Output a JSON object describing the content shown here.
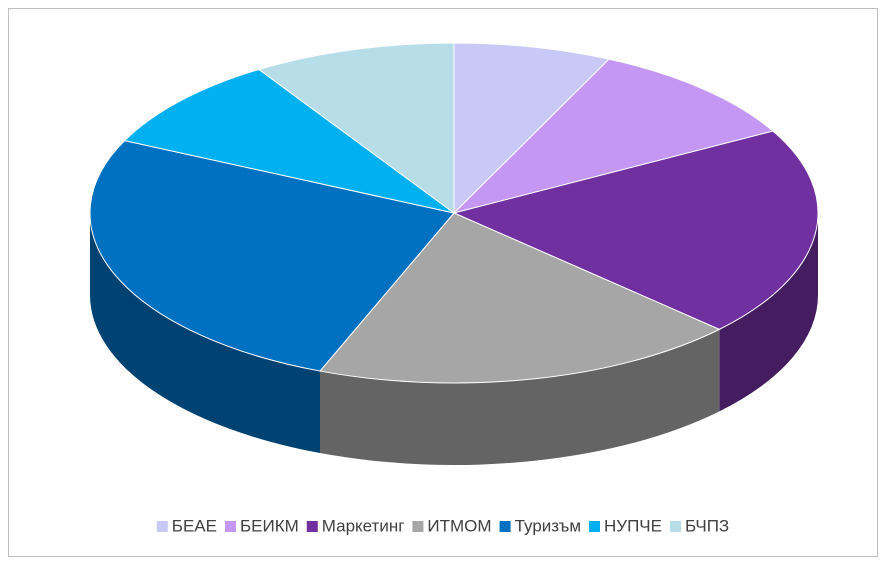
{
  "chart_data": {
    "type": "pie3d",
    "categories": [
      "БЕАЕ",
      "БЕИКМ",
      "Маркетинг",
      "ИТМОМ",
      "Туризъм",
      "НУПЧЕ",
      "БЧПЗ"
    ],
    "values": [
      7,
      10,
      20,
      19,
      26,
      9,
      9
    ],
    "colors": [
      "#c9c9f7",
      "#c497f5",
      "#7030a0",
      "#a6a6a6",
      "#0070c0",
      "#00b0f0",
      "#b7dde8"
    ],
    "legend": "bottom"
  }
}
